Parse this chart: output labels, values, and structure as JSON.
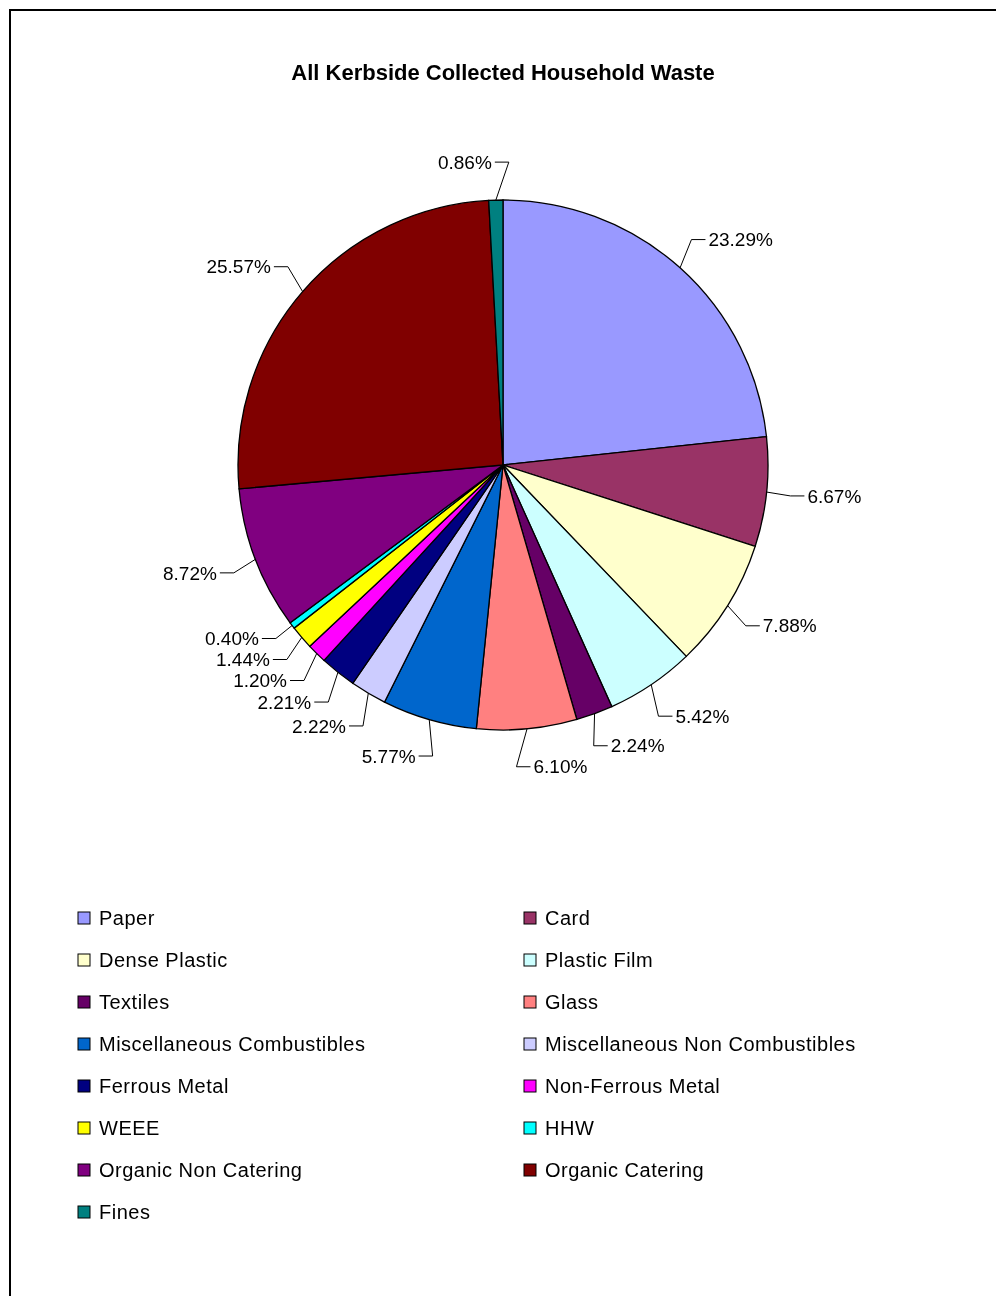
{
  "chart_data": {
    "type": "pie",
    "title": "All Kerbside Collected Household Waste",
    "categories": [
      "Paper",
      "Card",
      "Dense Plastic",
      "Plastic Film",
      "Textiles",
      "Glass",
      "Miscellaneous Combustibles",
      "Miscellaneous Non Combustibles",
      "Ferrous Metal",
      "Non-Ferrous Metal",
      "WEEE",
      "HHW",
      "Organic Non Catering",
      "Organic Catering",
      "Fines"
    ],
    "values": [
      23.29,
      6.67,
      7.88,
      5.42,
      2.24,
      6.1,
      5.77,
      2.22,
      2.21,
      1.2,
      1.44,
      0.4,
      8.72,
      25.57,
      0.86
    ],
    "value_labels": [
      "23.29%",
      "6.67%",
      "7.88%",
      "5.42%",
      "2.24%",
      "6.10%",
      "5.77%",
      "2.22%",
      "2.21%",
      "1.20%",
      "1.44%",
      "0.40%",
      "8.72%",
      "25.57%",
      "0.86%"
    ],
    "colors": [
      "#9999ff",
      "#993366",
      "#ffffcc",
      "#ccffff",
      "#660066",
      "#ff8080",
      "#0066cc",
      "#ccccff",
      "#000080",
      "#ff00ff",
      "#ffff00",
      "#00ffff",
      "#800080",
      "#800000",
      "#008080"
    ],
    "legend": "bottom"
  }
}
